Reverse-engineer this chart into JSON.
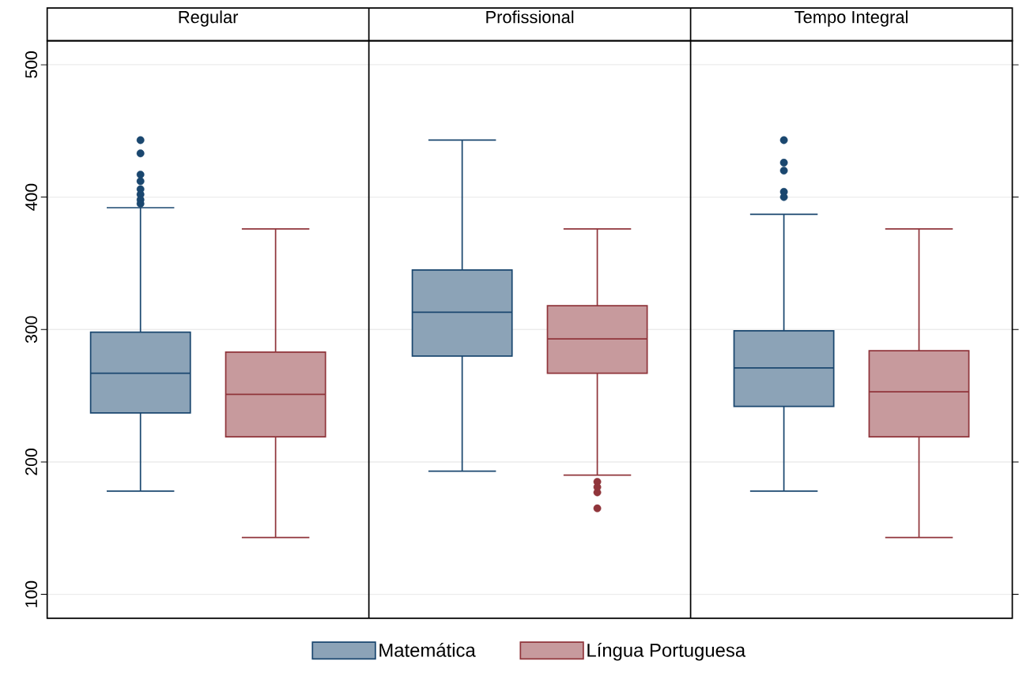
{
  "chart_data": {
    "type": "box",
    "categories": [
      "Regular",
      "Profissional",
      "Tempo Integral"
    ],
    "series": [
      {
        "name": "Matemática",
        "color": "#1a476f",
        "boxes": [
          {
            "low": 178,
            "q1": 237,
            "median": 267,
            "q3": 298,
            "high": 392,
            "outliers": [
              443,
              433,
              417,
              412,
              406,
              402,
              398,
              395
            ]
          },
          {
            "low": 193,
            "q1": 280,
            "median": 313,
            "q3": 345,
            "high": 443
          },
          {
            "low": 178,
            "q1": 242,
            "median": 271,
            "q3": 299,
            "high": 387,
            "outliers": [
              443,
              426,
              420,
              404,
              400
            ]
          }
        ]
      },
      {
        "name": "Língua Portuguesa",
        "color": "#90353b",
        "boxes": [
          {
            "low": 143,
            "q1": 219,
            "median": 251,
            "q3": 283,
            "high": 376
          },
          {
            "low": 190,
            "q1": 267,
            "median": 293,
            "q3": 318,
            "high": 376,
            "outliers": [
              185,
              181,
              177,
              165
            ]
          },
          {
            "low": 143,
            "q1": 219,
            "median": 253,
            "q3": 284,
            "high": 376
          }
        ]
      }
    ],
    "ylim": [
      82,
      518
    ],
    "yticks": [
      100,
      200,
      300,
      400,
      500
    ],
    "grid": "y",
    "legend": "bottom"
  }
}
